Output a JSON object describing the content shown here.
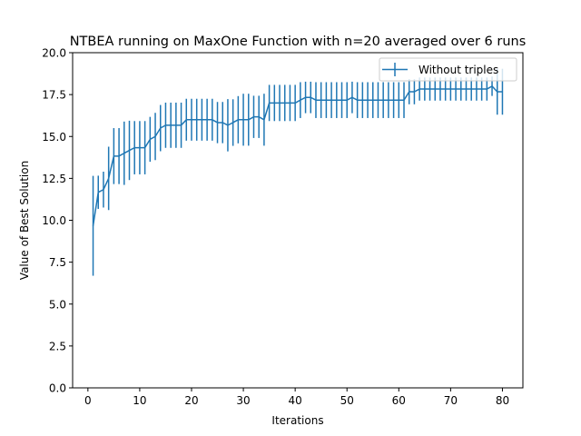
{
  "chart_data": {
    "type": "line",
    "title": "NTBEA running on MaxOne Function with n=20 averaged over 6 runs",
    "xlabel": "Iterations",
    "ylabel": "Value of Best Solution",
    "xlim": [
      -2.95,
      83.95
    ],
    "ylim": [
      0,
      20
    ],
    "x_ticks": [
      0,
      10,
      20,
      30,
      40,
      50,
      60,
      70,
      80
    ],
    "x_tick_labels": [
      "0",
      "10",
      "20",
      "30",
      "40",
      "50",
      "60",
      "70",
      "80"
    ],
    "y_ticks": [
      0,
      2.5,
      5,
      7.5,
      10,
      12.5,
      15,
      17.5,
      20
    ],
    "y_tick_labels": [
      "0.0",
      "2.5",
      "5.0",
      "7.5",
      "10.0",
      "12.5",
      "15.0",
      "17.5",
      "20.0"
    ],
    "grid": false,
    "legend": {
      "position": "top-right",
      "entries": [
        "Without triples"
      ]
    },
    "series": [
      {
        "name": "Without triples",
        "color": "#1f77b4",
        "x": [
          1,
          2,
          3,
          4,
          5,
          6,
          7,
          8,
          9,
          10,
          11,
          12,
          13,
          14,
          15,
          16,
          17,
          18,
          19,
          20,
          21,
          22,
          23,
          24,
          25,
          26,
          27,
          28,
          29,
          30,
          31,
          32,
          33,
          34,
          35,
          36,
          37,
          38,
          39,
          40,
          41,
          42,
          43,
          44,
          45,
          46,
          47,
          48,
          49,
          50,
          51,
          52,
          53,
          54,
          55,
          56,
          57,
          58,
          59,
          60,
          61,
          62,
          63,
          64,
          65,
          66,
          67,
          68,
          69,
          70,
          71,
          72,
          73,
          74,
          75,
          76,
          77,
          78,
          79,
          80
        ],
        "y": [
          9.67,
          11.67,
          11.83,
          12.5,
          13.83,
          13.83,
          14.0,
          14.17,
          14.33,
          14.33,
          14.33,
          14.83,
          15.0,
          15.5,
          15.67,
          15.67,
          15.67,
          15.67,
          16.0,
          16.0,
          16.0,
          16.0,
          16.0,
          16.0,
          15.83,
          15.83,
          15.67,
          15.83,
          16.0,
          16.0,
          16.0,
          16.17,
          16.17,
          16.0,
          17.0,
          17.0,
          17.0,
          17.0,
          17.0,
          17.0,
          17.17,
          17.33,
          17.33,
          17.17,
          17.17,
          17.17,
          17.17,
          17.17,
          17.17,
          17.17,
          17.33,
          17.17,
          17.17,
          17.17,
          17.17,
          17.17,
          17.17,
          17.17,
          17.17,
          17.17,
          17.17,
          17.67,
          17.67,
          17.83,
          17.83,
          17.83,
          17.83,
          17.83,
          17.83,
          17.83,
          17.83,
          17.83,
          17.83,
          17.83,
          17.83,
          17.83,
          17.83,
          18.0,
          17.67,
          17.67
        ],
        "err": [
          2.98,
          0.99,
          1.07,
          1.89,
          1.67,
          1.67,
          1.89,
          1.77,
          1.59,
          1.59,
          1.59,
          1.34,
          1.41,
          1.38,
          1.35,
          1.35,
          1.35,
          1.35,
          1.25,
          1.25,
          1.25,
          1.25,
          1.25,
          1.25,
          1.23,
          1.23,
          1.56,
          1.39,
          1.41,
          1.55,
          1.55,
          1.26,
          1.26,
          1.55,
          1.08,
          1.08,
          1.08,
          1.08,
          1.08,
          1.08,
          1.07,
          0.94,
          0.94,
          1.07,
          1.07,
          1.07,
          1.07,
          1.07,
          1.07,
          1.07,
          0.94,
          1.07,
          1.07,
          1.07,
          1.07,
          1.07,
          1.07,
          1.07,
          1.07,
          1.07,
          1.07,
          0.75,
          0.75,
          0.69,
          0.69,
          0.69,
          0.69,
          0.69,
          0.69,
          0.69,
          0.69,
          0.69,
          0.69,
          0.69,
          0.69,
          0.69,
          0.69,
          0.58,
          1.37,
          1.37
        ]
      }
    ]
  }
}
